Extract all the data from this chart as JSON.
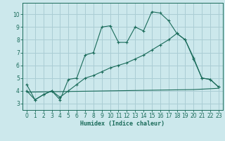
{
  "xlabel": "Humidex (Indice chaleur)",
  "bg_color": "#cce8ec",
  "grid_color": "#aacdd4",
  "line_color": "#1a6b5a",
  "xlim": [
    -0.5,
    23.5
  ],
  "ylim": [
    2.5,
    10.9
  ],
  "xticks": [
    0,
    1,
    2,
    3,
    4,
    5,
    6,
    7,
    8,
    9,
    10,
    11,
    12,
    13,
    14,
    15,
    16,
    17,
    18,
    19,
    20,
    21,
    22,
    23
  ],
  "yticks": [
    3,
    4,
    5,
    6,
    7,
    8,
    9,
    10
  ],
  "series1_x": [
    0,
    1,
    2,
    3,
    4,
    5,
    6,
    7,
    8,
    9,
    10,
    11,
    12,
    13,
    14,
    15,
    16,
    17,
    18,
    19,
    20,
    21,
    22,
    23
  ],
  "series1_y": [
    4.5,
    3.3,
    3.7,
    4.0,
    3.3,
    4.9,
    5.0,
    6.8,
    7.0,
    9.0,
    9.1,
    7.8,
    7.8,
    9.0,
    8.7,
    10.2,
    10.1,
    9.5,
    8.5,
    8.0,
    6.6,
    5.0,
    4.9,
    4.3
  ],
  "series2_x": [
    0,
    1,
    2,
    3,
    4,
    5,
    6,
    7,
    8,
    9,
    10,
    11,
    12,
    13,
    14,
    15,
    16,
    17,
    18,
    19,
    20,
    21,
    22,
    23
  ],
  "series2_y": [
    4.0,
    3.3,
    3.7,
    4.0,
    3.5,
    4.0,
    4.5,
    5.0,
    5.2,
    5.5,
    5.8,
    6.0,
    6.2,
    6.5,
    6.8,
    7.2,
    7.6,
    8.0,
    8.5,
    8.0,
    6.5,
    5.0,
    4.9,
    4.3
  ],
  "series3_x": [
    0,
    10,
    20,
    23
  ],
  "series3_y": [
    3.9,
    4.0,
    4.1,
    4.2
  ]
}
